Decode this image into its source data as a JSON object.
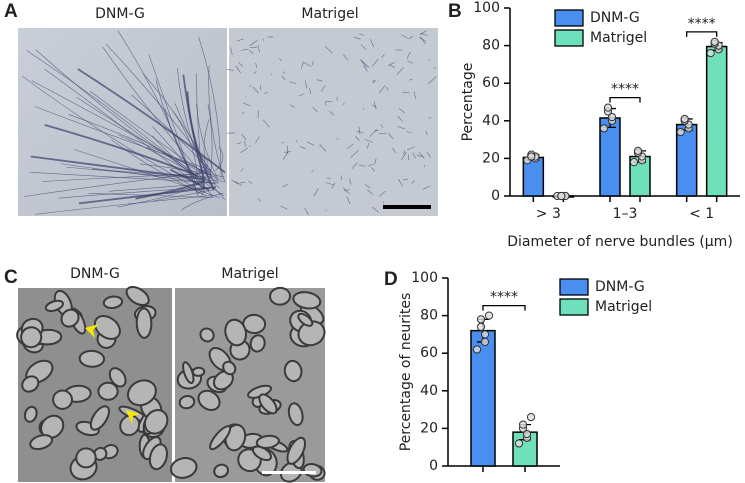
{
  "panels": {
    "a": "A",
    "b": "B",
    "c": "C",
    "d": "D"
  },
  "micrographs_a": {
    "left_label": "DNM-G",
    "right_label": "Matrigel"
  },
  "micrographs_c": {
    "left_label": "DNM-G",
    "right_label": "Matrigel"
  },
  "chart_data": [
    {
      "type": "bar",
      "ylabel": "Percentage",
      "xlabel": "Diameter of nerve bundles (µm)",
      "categories": [
        "> 3",
        "1–3",
        "< 1"
      ],
      "series": [
        {
          "name": "DNM-G",
          "color": "#4a8ef0",
          "values": [
            20.5,
            41.5,
            38
          ],
          "errors": [
            1.5,
            5,
            3
          ],
          "points": [
            [
              19,
              20,
              21,
              22,
              21
            ],
            [
              36,
              40,
              42,
              45,
              47
            ],
            [
              34,
              36,
              38,
              40,
              41
            ]
          ]
        },
        {
          "name": "Matrigel",
          "color": "#6fe0bc",
          "values": [
            0,
            21,
            79.5
          ],
          "errors": [
            0.5,
            3,
            2
          ],
          "points": [
            [
              0,
              0,
              0,
              0,
              0
            ],
            [
              18,
              19,
              21,
              23,
              24
            ],
            [
              76,
              78,
              80,
              81,
              82
            ]
          ]
        }
      ],
      "significance": [
        null,
        "****",
        "****"
      ],
      "ylim": [
        0,
        100
      ],
      "yticks": [
        0,
        20,
        40,
        60,
        80,
        100
      ],
      "legend": "upper-left"
    },
    {
      "type": "bar",
      "ylabel": "Percentage of neurites",
      "categories": [
        null
      ],
      "series": [
        {
          "name": "DNM-G",
          "color": "#4a8ef0",
          "values": [
            72
          ],
          "errors": [
            6
          ],
          "points": [
            [
              62,
              66,
              70,
              74,
              78,
              80
            ]
          ]
        },
        {
          "name": "Matrigel",
          "color": "#6fe0bc",
          "values": [
            18
          ],
          "errors": [
            4
          ],
          "points": [
            [
              12,
              15,
              17,
              20,
              22,
              26
            ]
          ]
        }
      ],
      "significance": [
        "****"
      ],
      "ylim": [
        0,
        100
      ],
      "yticks": [
        0,
        20,
        40,
        60,
        80,
        100
      ],
      "legend": "right"
    }
  ]
}
